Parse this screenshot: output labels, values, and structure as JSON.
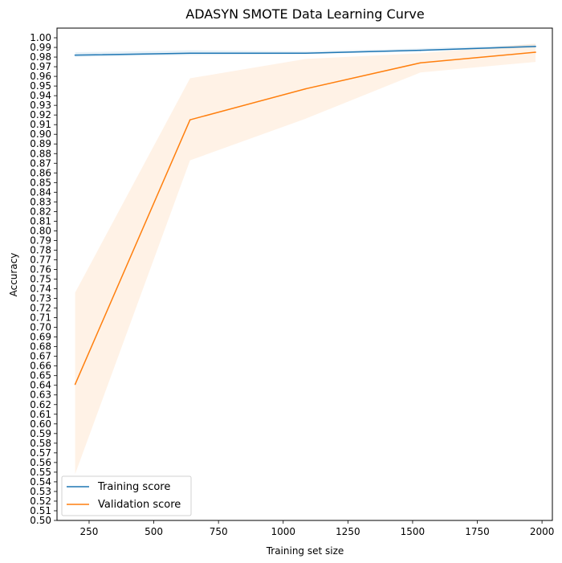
{
  "chart_data": {
    "type": "line",
    "title": "ADASYN SMOTE Data Learning Curve",
    "xlabel": "Training set size",
    "ylabel": "Accuracy",
    "xlim": [
      126,
      2040
    ],
    "ylim": [
      0.5,
      1.01
    ],
    "xticks": [
      250,
      500,
      750,
      1000,
      1250,
      1500,
      1750,
      2000
    ],
    "yticks": [
      0.5,
      0.51,
      0.52,
      0.53,
      0.54,
      0.55,
      0.56,
      0.57,
      0.58,
      0.59,
      0.6,
      0.61,
      0.62,
      0.63,
      0.64,
      0.65,
      0.66,
      0.67,
      0.68,
      0.69,
      0.7,
      0.71,
      0.72,
      0.73,
      0.74,
      0.75,
      0.76,
      0.77,
      0.78,
      0.79,
      0.8,
      0.81,
      0.82,
      0.83,
      0.84,
      0.85,
      0.86,
      0.87,
      0.88,
      0.89,
      0.9,
      0.91,
      0.92,
      0.93,
      0.94,
      0.95,
      0.96,
      0.97,
      0.98,
      0.99,
      1.0
    ],
    "x": [
      196,
      640,
      1085,
      1530,
      1975
    ],
    "series": [
      {
        "name": "Training score",
        "color": "#1f77b4",
        "values": [
          0.982,
          0.984,
          0.984,
          0.987,
          0.991
        ],
        "band_lower": [
          0.98,
          0.982,
          0.983,
          0.986,
          0.99
        ],
        "band_upper": [
          0.985,
          0.987,
          0.986,
          0.989,
          0.993
        ]
      },
      {
        "name": "Validation score",
        "color": "#ff7f0e",
        "values": [
          0.641,
          0.915,
          0.947,
          0.974,
          0.985
        ],
        "band_lower": [
          0.548,
          0.873,
          0.916,
          0.964,
          0.975
        ],
        "band_upper": [
          0.736,
          0.958,
          0.978,
          0.984,
          0.994
        ]
      }
    ],
    "legend_position": "lower-left",
    "grid": false
  }
}
